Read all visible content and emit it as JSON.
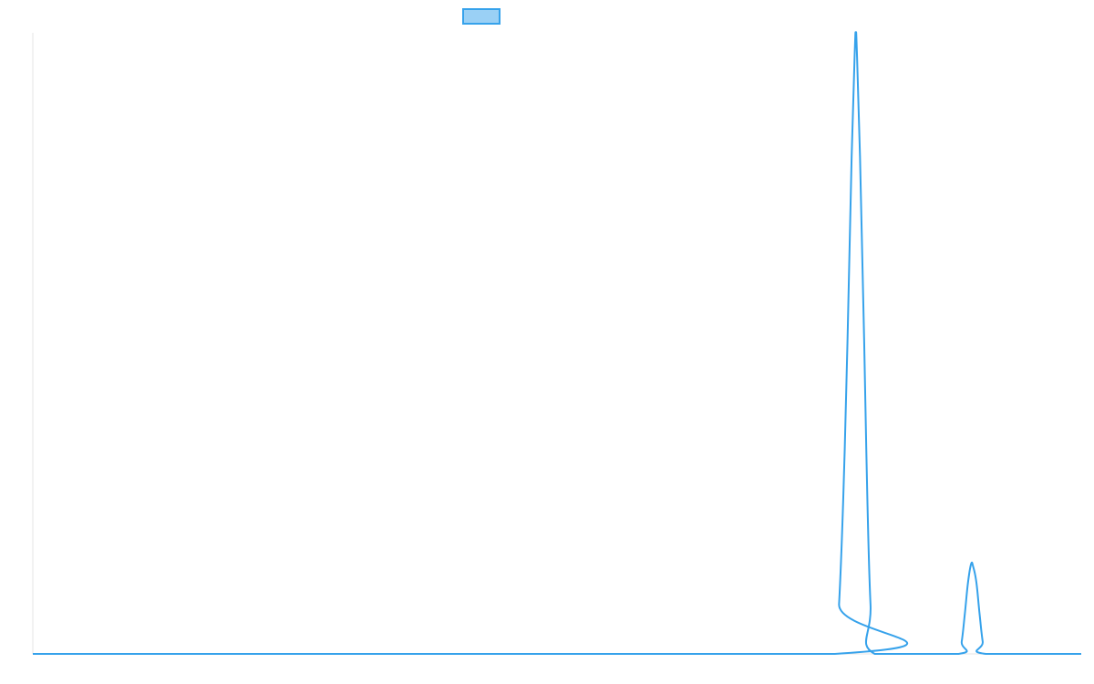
{
  "chart_data": {
    "type": "line",
    "title": "",
    "xlabel": "",
    "ylabel": "",
    "legend": {
      "position": "top-center",
      "label": ""
    },
    "grid": false,
    "x_range": [
      0,
      100
    ],
    "y_range": [
      0,
      100
    ],
    "series": [
      {
        "color": "#36a2eb",
        "fill_color": "#9ad0f5",
        "points": [
          [
            0,
            0
          ],
          [
            76.5,
            0
          ],
          [
            76.9,
            8
          ],
          [
            77.3,
            25
          ],
          [
            77.7,
            50
          ],
          [
            78.1,
            80
          ],
          [
            78.4,
            97
          ],
          [
            78.5,
            100
          ],
          [
            78.6,
            97
          ],
          [
            78.9,
            80
          ],
          [
            79.3,
            50
          ],
          [
            79.6,
            25
          ],
          [
            79.9,
            8
          ],
          [
            80.3,
            0
          ],
          [
            88.3,
            0
          ],
          [
            88.6,
            2
          ],
          [
            88.9,
            6.5
          ],
          [
            89.2,
            11.5
          ],
          [
            89.5,
            14.5
          ],
          [
            89.7,
            14
          ],
          [
            90.0,
            11.5
          ],
          [
            90.3,
            6.5
          ],
          [
            90.6,
            2
          ],
          [
            90.9,
            0
          ],
          [
            100,
            0
          ]
        ]
      }
    ]
  }
}
